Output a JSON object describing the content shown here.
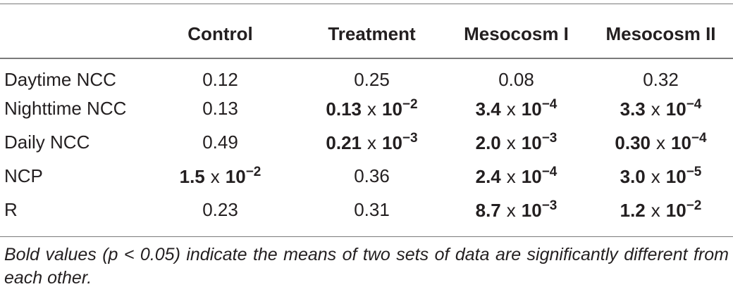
{
  "table": {
    "headers": [
      "",
      "Control",
      "Treatment",
      "Mesocosm I",
      "Mesocosm II"
    ],
    "rows": [
      {
        "label": "Daytime NCC",
        "cells": [
          {
            "text": "0.12",
            "bold": false
          },
          {
            "text": "0.25",
            "bold": false
          },
          {
            "text": "0.08",
            "bold": false
          },
          {
            "text": "0.32",
            "bold": false
          }
        ]
      },
      {
        "label": "Nighttime NCC",
        "cells": [
          {
            "text": "0.13",
            "bold": false
          },
          {
            "mantissa": "0.13",
            "exponent": "−2",
            "bold": true
          },
          {
            "mantissa": "3.4",
            "exponent": "−4",
            "bold": true
          },
          {
            "mantissa": "3.3",
            "exponent": "−4",
            "bold": true
          }
        ]
      },
      {
        "label": "Daily NCC",
        "cells": [
          {
            "text": "0.49",
            "bold": false
          },
          {
            "mantissa": "0.21",
            "exponent": "−3",
            "bold": true
          },
          {
            "mantissa": "2.0",
            "exponent": "−3",
            "bold": true
          },
          {
            "mantissa": "0.30",
            "exponent": "−4",
            "bold": true
          }
        ]
      },
      {
        "label": "NCP",
        "cells": [
          {
            "mantissa": "1.5",
            "exponent": "−2",
            "bold": true
          },
          {
            "text": "0.36",
            "bold": false
          },
          {
            "mantissa": "2.4",
            "exponent": "−4",
            "bold": true
          },
          {
            "mantissa": "3.0",
            "exponent": "−5",
            "bold": true
          }
        ]
      },
      {
        "label": "R",
        "cells": [
          {
            "text": "0.23",
            "bold": false
          },
          {
            "text": "0.31",
            "bold": false
          },
          {
            "mantissa": "8.7",
            "exponent": "−3",
            "bold": true
          },
          {
            "mantissa": "1.2",
            "exponent": "−2",
            "bold": true
          }
        ]
      }
    ],
    "times_symbol": "x",
    "base": "10"
  },
  "footnote": "Bold values (p < 0.05) indicate the means of two sets of data are significantly different from each other."
}
